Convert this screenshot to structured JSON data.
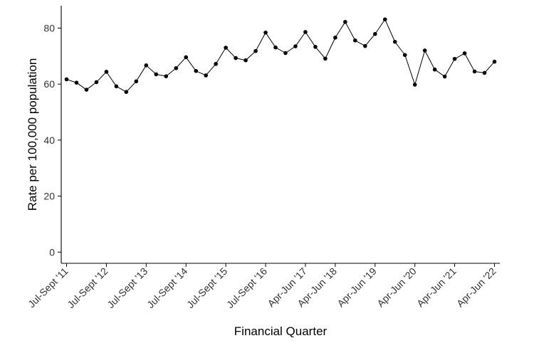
{
  "chart_data": {
    "type": "line",
    "title": "",
    "xlabel": "Financial Quarter",
    "ylabel": "Rate per 100,000 population",
    "ylim": [
      -4,
      88
    ],
    "yticks": [
      0,
      20,
      40,
      60,
      80
    ],
    "grid": false,
    "legend": "none",
    "colors": {
      "line": "#000000",
      "point": "#000000",
      "axis": "#000000"
    },
    "x_tick_labels": [
      {
        "index": 0,
        "label": "Jul-Sept '11"
      },
      {
        "index": 4,
        "label": "Jul-Sept '12"
      },
      {
        "index": 8,
        "label": "Jul-Sept '13"
      },
      {
        "index": 12,
        "label": "Jul-Sept '14"
      },
      {
        "index": 16,
        "label": "Jul-Sept '15"
      },
      {
        "index": 20,
        "label": "Jul-Sept '16"
      },
      {
        "index": 24,
        "label": "Apr-Jun '17"
      },
      {
        "index": 27,
        "label": "Apr-Jun '18"
      },
      {
        "index": 31,
        "label": "Apr-Jun '19"
      },
      {
        "index": 35,
        "label": "Apr-Jun '20"
      },
      {
        "index": 39,
        "label": "Apr-Jun '21"
      },
      {
        "index": 43,
        "label": "Apr-Jun '22"
      }
    ],
    "values": [
      61.7,
      60.5,
      58.0,
      60.7,
      64.4,
      59.2,
      57.2,
      61.0,
      66.7,
      63.5,
      62.8,
      65.7,
      69.6,
      64.7,
      63.1,
      67.2,
      73.0,
      69.3,
      68.5,
      71.8,
      78.4,
      73.1,
      71.1,
      73.5,
      78.6,
      73.3,
      69.1,
      76.6,
      82.2,
      75.6,
      73.6,
      77.9,
      83.1,
      75.1,
      70.4,
      59.8,
      72.0,
      65.2,
      62.7,
      69.0,
      71.0,
      64.5,
      64.0,
      68.0
    ]
  }
}
